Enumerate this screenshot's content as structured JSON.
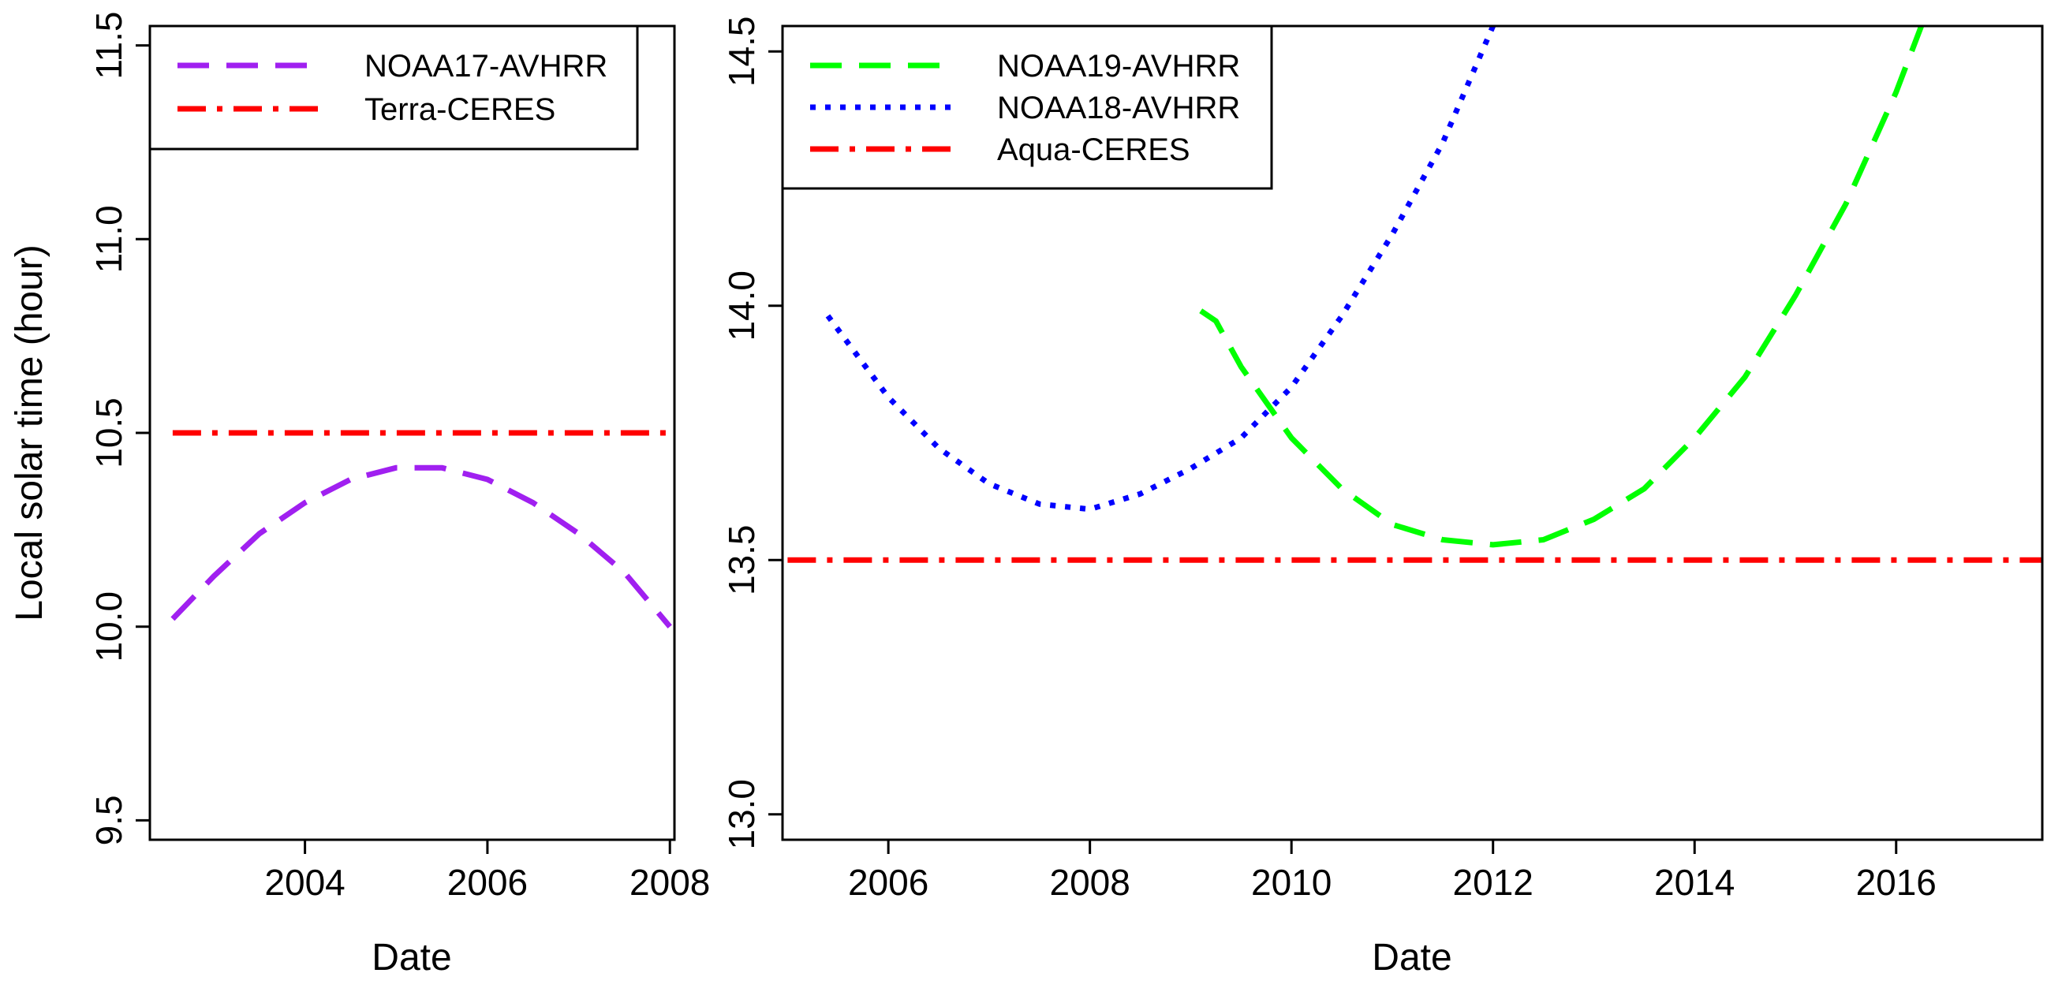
{
  "chart_data": [
    {
      "type": "line",
      "xlabel": "Date",
      "ylabel": "Local solar time (hour)",
      "xlim": [
        2002.3,
        2008.05
      ],
      "ylim": [
        9.45,
        11.55
      ],
      "xticks": [
        2004,
        2006,
        2008
      ],
      "xtick_labels": [
        "2004",
        "2006",
        "2008"
      ],
      "yticks": [
        9.5,
        10.0,
        10.5,
        11.0,
        11.5
      ],
      "ytick_labels": [
        "9.5",
        "10.0",
        "10.5",
        "11.0",
        "11.5"
      ],
      "legend_position": "top-left",
      "series": [
        {
          "name": "NOAA17-AVHRR",
          "color": "#a020f0",
          "style": "dashed",
          "x": [
            2002.55,
            2003.0,
            2003.5,
            2004.0,
            2004.5,
            2005.0,
            2005.2,
            2005.5,
            2006.0,
            2006.5,
            2007.0,
            2007.5,
            2008.0
          ],
          "y": [
            10.02,
            10.13,
            10.24,
            10.32,
            10.38,
            10.41,
            10.41,
            10.41,
            10.38,
            10.32,
            10.24,
            10.14,
            10.0
          ]
        },
        {
          "name": "Terra-CERES",
          "color": "#ff0000",
          "style": "dotdash",
          "x": [
            2002.55,
            2008.0
          ],
          "y": [
            10.5,
            10.5
          ]
        }
      ]
    },
    {
      "type": "line",
      "xlabel": "Date",
      "ylabel": "",
      "xlim": [
        2004.95,
        2017.45
      ],
      "ylim": [
        12.95,
        14.55
      ],
      "xticks": [
        2006,
        2008,
        2010,
        2012,
        2014,
        2016
      ],
      "xtick_labels": [
        "2006",
        "2008",
        "2010",
        "2012",
        "2014",
        "2016"
      ],
      "yticks": [
        13.0,
        13.5,
        14.0,
        14.5
      ],
      "ytick_labels": [
        "13.0",
        "13.5",
        "14.0",
        "14.5"
      ],
      "legend_position": "top-left",
      "series": [
        {
          "name": "NOAA19-AVHRR",
          "color": "#00ff00",
          "style": "dashed",
          "x": [
            2009.1,
            2009.25,
            2009.5,
            2010.0,
            2010.5,
            2011.0,
            2011.5,
            2012.0,
            2012.5,
            2013.0,
            2013.5,
            2014.0,
            2014.5,
            2015.0,
            2015.5,
            2016.0,
            2016.25
          ],
          "y": [
            13.99,
            13.97,
            13.88,
            13.74,
            13.64,
            13.57,
            13.54,
            13.53,
            13.54,
            13.58,
            13.64,
            13.74,
            13.86,
            14.02,
            14.2,
            14.42,
            14.55
          ]
        },
        {
          "name": "NOAA18-AVHRR",
          "color": "#0000ff",
          "style": "dotted",
          "x": [
            2005.4,
            2006.0,
            2006.5,
            2007.0,
            2007.5,
            2008.0,
            2008.5,
            2009.0,
            2009.5,
            2010.0,
            2010.5,
            2011.0,
            2011.5,
            2012.0
          ],
          "y": [
            13.98,
            13.82,
            13.72,
            13.65,
            13.61,
            13.6,
            13.63,
            13.68,
            13.74,
            13.84,
            13.98,
            14.14,
            14.32,
            14.55
          ]
        },
        {
          "name": "Aqua-CERES",
          "color": "#ff0000",
          "style": "dotdash",
          "x": [
            2005.0,
            2017.45
          ],
          "y": [
            13.5,
            13.5
          ]
        }
      ]
    }
  ]
}
